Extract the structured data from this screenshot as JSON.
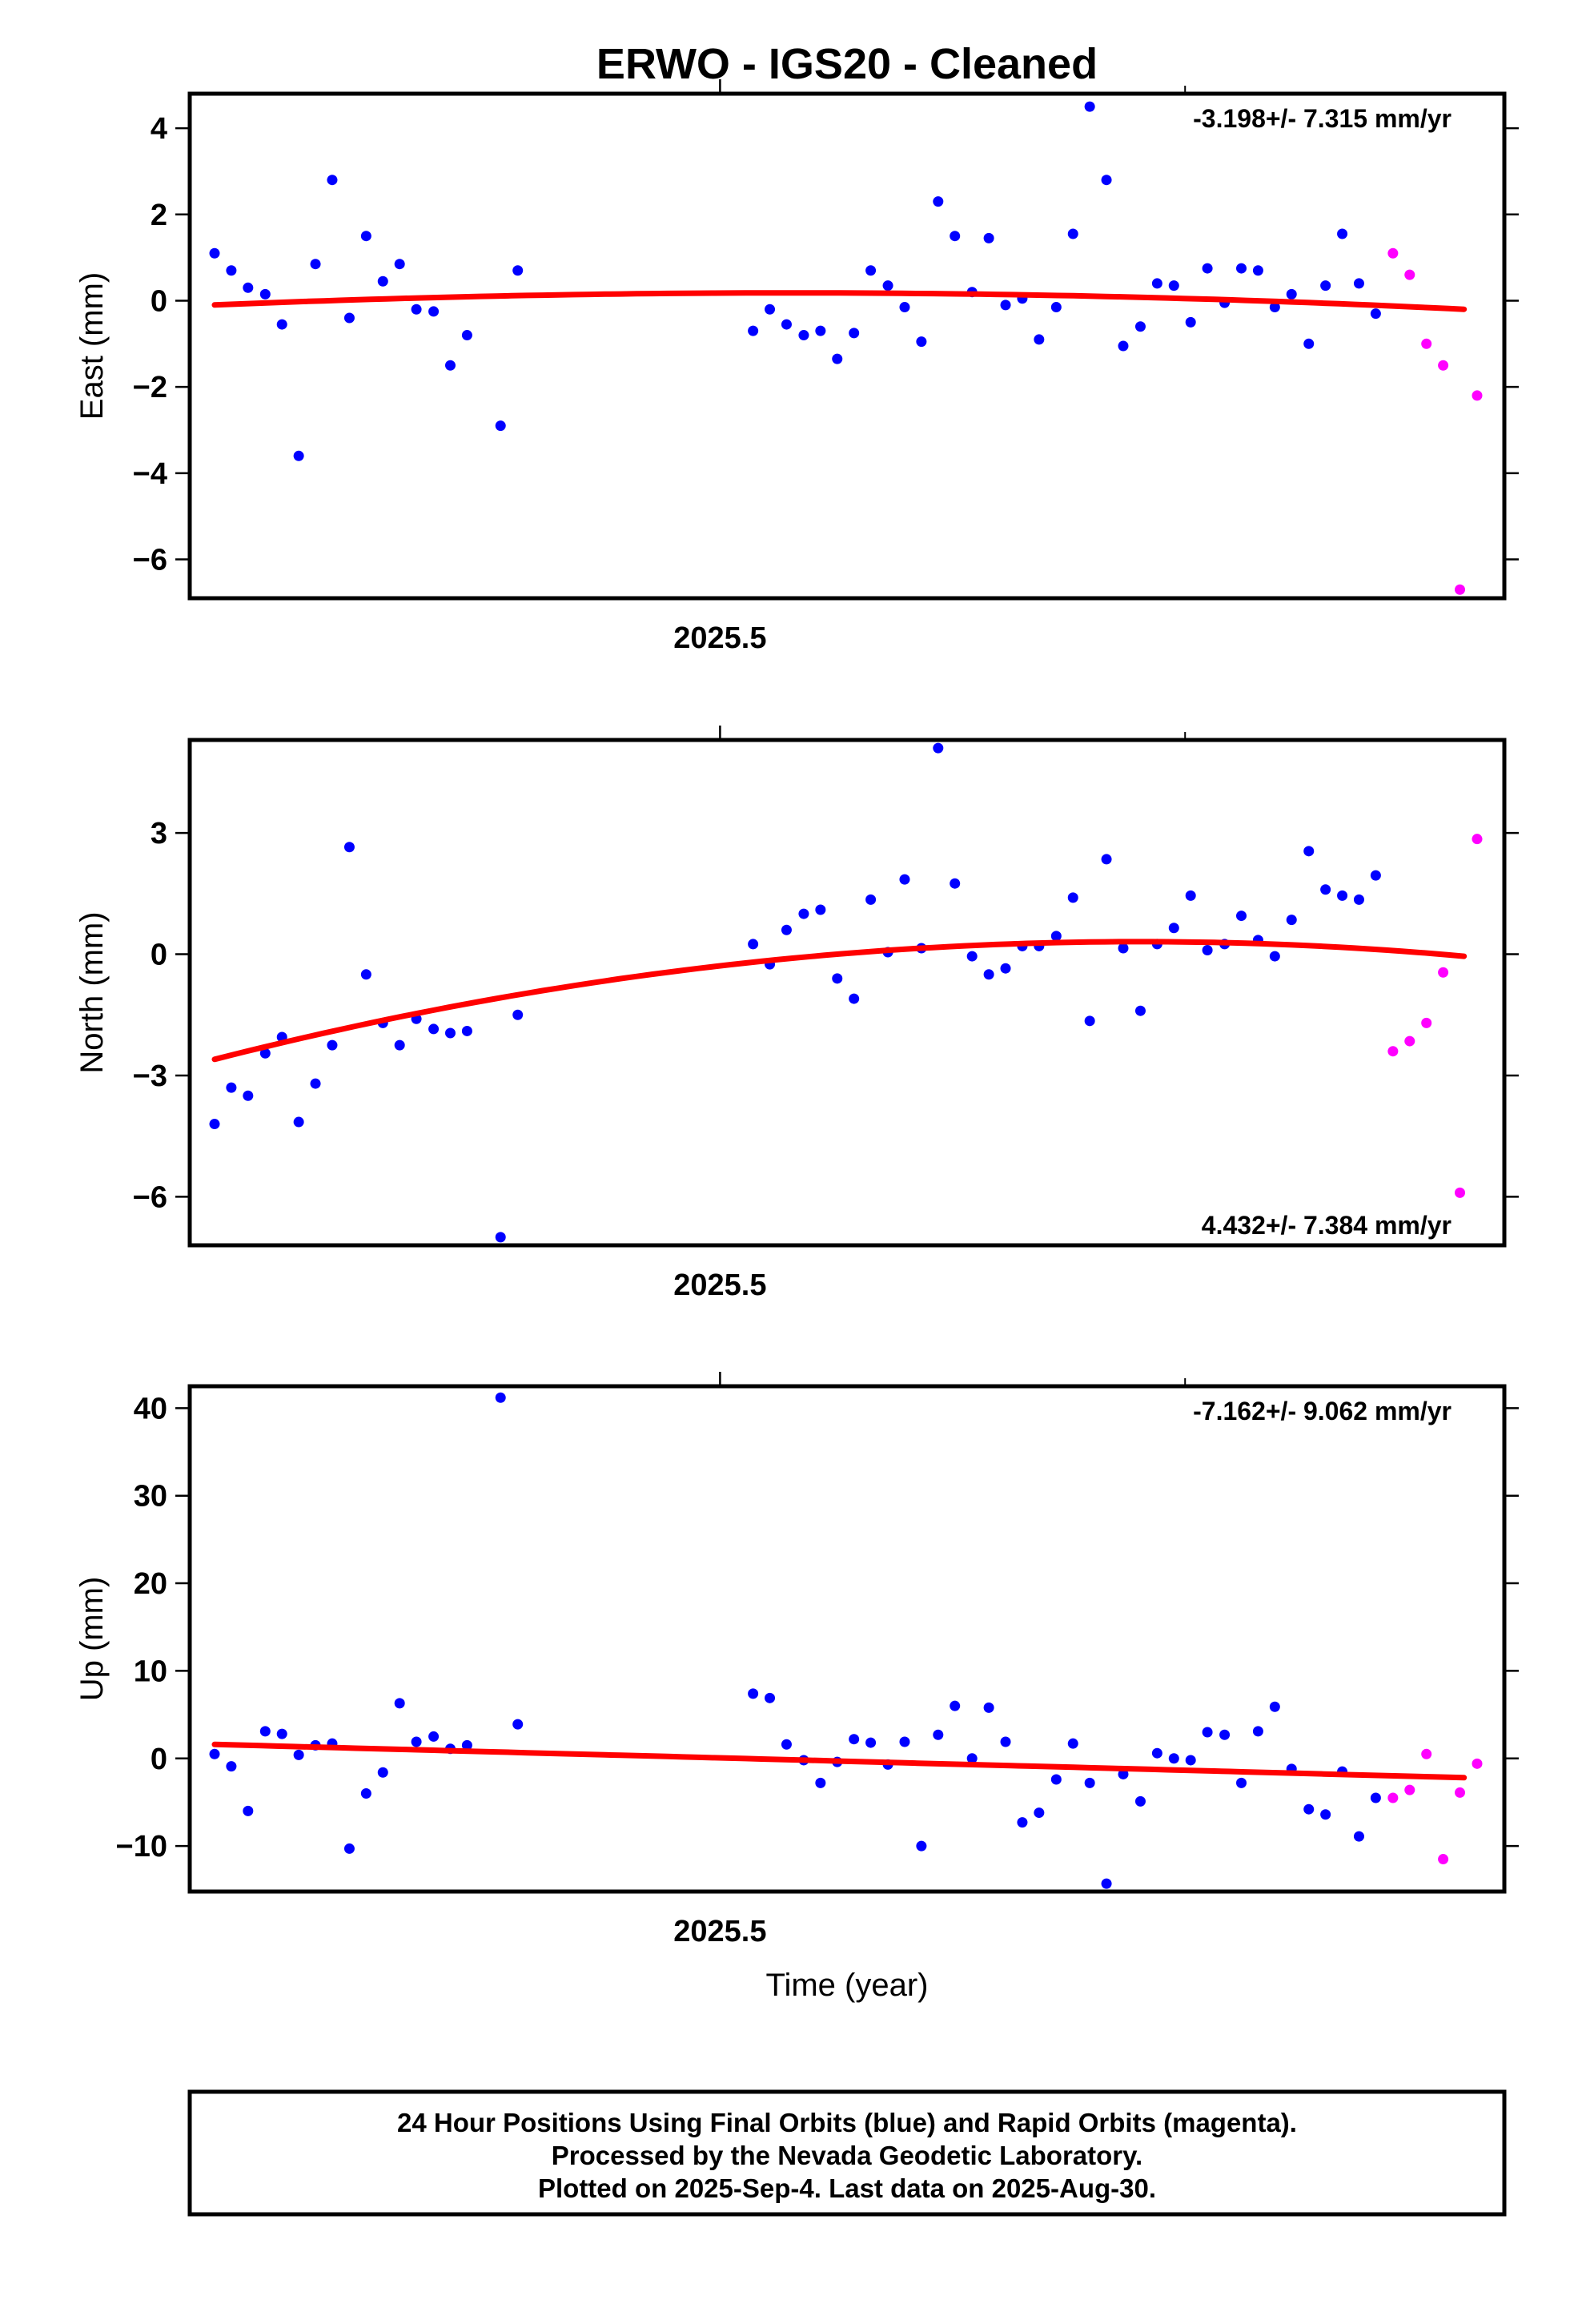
{
  "title": "ERWO  - IGS20 - Cleaned",
  "x_axis_label": "Time (year)",
  "caption": [
    "24 Hour Positions Using Final Orbits (blue) and Rapid Orbits (magenta).",
    "Processed by the Nevada Geodetic Laboratory.",
    "Plotted on 2025-Sep-4. Last data on 2025-Aug-30."
  ],
  "colors": {
    "final": "#0000ff",
    "rapid": "#ff00ff",
    "fit": "#ff0000",
    "frame": "#000000"
  },
  "chart_data": [
    {
      "type": "scatter",
      "ylabel": "East (mm)",
      "rate_label": "-3.198+/- 7.315 mm/yr",
      "rate_position": "top-right",
      "xlim": [
        2025.3853,
        2025.6625
      ],
      "ylim": [
        -6.9,
        4.8
      ],
      "xticks": [
        2025.5
      ],
      "xtick_labels": [
        "2025.5"
      ],
      "yticks": [
        4,
        2,
        0,
        -2,
        -4,
        -6
      ],
      "ytick_labels": [
        "4",
        "2",
        "0",
        "−2",
        "−4",
        "−6"
      ],
      "fit": {
        "x": [
          2025.3913,
          2025.66
        ],
        "y_start": -0.1,
        "y_peak": 0.18,
        "y_end": -0.2,
        "x_peak": 2025.51
      },
      "final": [
        [
          2025.3913,
          1.1
        ],
        [
          2025.3949,
          0.7
        ],
        [
          2025.3985,
          0.3
        ],
        [
          2025.4022,
          0.15
        ],
        [
          2025.4058,
          -0.55
        ],
        [
          2025.4094,
          -3.6
        ],
        [
          2025.413,
          0.85
        ],
        [
          2025.4166,
          2.8
        ],
        [
          2025.4203,
          -0.4
        ],
        [
          2025.4239,
          1.5
        ],
        [
          2025.4275,
          0.45
        ],
        [
          2025.4311,
          0.85
        ],
        [
          2025.4347,
          -0.2
        ],
        [
          2025.4384,
          -0.25
        ],
        [
          2025.442,
          -1.5
        ],
        [
          2025.4456,
          -0.8
        ],
        [
          2025.4528,
          -2.9
        ],
        [
          2025.4565,
          0.7
        ],
        [
          2025.5071,
          -0.7
        ],
        [
          2025.5107,
          -0.2
        ],
        [
          2025.5143,
          -0.55
        ],
        [
          2025.518,
          -0.8
        ],
        [
          2025.5216,
          -0.7
        ],
        [
          2025.5252,
          -1.35
        ],
        [
          2025.5288,
          -0.75
        ],
        [
          2025.5324,
          0.7
        ],
        [
          2025.5361,
          0.35
        ],
        [
          2025.5397,
          -0.15
        ],
        [
          2025.5433,
          -0.95
        ],
        [
          2025.5469,
          2.3
        ],
        [
          2025.5505,
          1.5
        ],
        [
          2025.5542,
          0.2
        ],
        [
          2025.5578,
          1.45
        ],
        [
          2025.5614,
          -0.1
        ],
        [
          2025.565,
          0.05
        ],
        [
          2025.5686,
          -0.9
        ],
        [
          2025.5723,
          -0.15
        ],
        [
          2025.5759,
          1.55
        ],
        [
          2025.5795,
          4.5
        ],
        [
          2025.5831,
          2.8
        ],
        [
          2025.5867,
          -1.05
        ],
        [
          2025.5904,
          -0.6
        ],
        [
          2025.594,
          0.4
        ],
        [
          2025.5976,
          0.35
        ],
        [
          2025.6012,
          -0.5
        ],
        [
          2025.6048,
          0.75
        ],
        [
          2025.6085,
          -0.05
        ],
        [
          2025.6121,
          0.75
        ],
        [
          2025.6157,
          0.7
        ],
        [
          2025.6193,
          -0.15
        ],
        [
          2025.6229,
          0.15
        ],
        [
          2025.6266,
          -1.0
        ],
        [
          2025.6302,
          0.35
        ],
        [
          2025.6338,
          1.55
        ],
        [
          2025.6374,
          0.4
        ],
        [
          2025.641,
          -0.3
        ]
      ],
      "rapid": [
        [
          2025.6447,
          1.1
        ],
        [
          2025.6483,
          0.6
        ],
        [
          2025.6519,
          -1.0
        ],
        [
          2025.6555,
          -1.5
        ],
        [
          2025.6591,
          -6.7
        ],
        [
          2025.6628,
          -2.2
        ]
      ]
    },
    {
      "type": "scatter",
      "ylabel": "North (mm)",
      "rate_label": "4.432+/- 7.384 mm/yr",
      "rate_position": "bottom-right",
      "xlim": [
        2025.3853,
        2025.6625
      ],
      "ylim": [
        -7.2,
        5.3
      ],
      "xticks": [
        2025.5
      ],
      "xtick_labels": [
        "2025.5"
      ],
      "yticks": [
        3,
        0,
        -3,
        -6
      ],
      "ytick_labels": [
        "3",
        "0",
        "−3",
        "−6"
      ],
      "fit": {
        "x": [
          2025.3913,
          2025.66
        ],
        "y_start": -2.6,
        "y_peak": 0.3,
        "y_end": -0.05,
        "x_peak": 2025.602
      },
      "final": [
        [
          2025.3913,
          -4.2
        ],
        [
          2025.3949,
          -3.3
        ],
        [
          2025.3985,
          -3.5
        ],
        [
          2025.4022,
          -2.45
        ],
        [
          2025.4058,
          -2.05
        ],
        [
          2025.4094,
          -4.15
        ],
        [
          2025.413,
          -3.2
        ],
        [
          2025.4166,
          -2.25
        ],
        [
          2025.4203,
          2.65
        ],
        [
          2025.4239,
          -0.5
        ],
        [
          2025.4275,
          -1.7
        ],
        [
          2025.4311,
          -2.25
        ],
        [
          2025.4347,
          -1.6
        ],
        [
          2025.4384,
          -1.85
        ],
        [
          2025.442,
          -1.95
        ],
        [
          2025.4456,
          -1.9
        ],
        [
          2025.4528,
          -7.0
        ],
        [
          2025.4565,
          -1.5
        ],
        [
          2025.5071,
          0.25
        ],
        [
          2025.5107,
          -0.25
        ],
        [
          2025.5143,
          0.6
        ],
        [
          2025.518,
          1.0
        ],
        [
          2025.5216,
          1.1
        ],
        [
          2025.5252,
          -0.6
        ],
        [
          2025.5288,
          -1.1
        ],
        [
          2025.5324,
          1.35
        ],
        [
          2025.5361,
          0.05
        ],
        [
          2025.5397,
          1.85
        ],
        [
          2025.5433,
          0.15
        ],
        [
          2025.5469,
          5.1
        ],
        [
          2025.5505,
          1.75
        ],
        [
          2025.5542,
          -0.05
        ],
        [
          2025.5578,
          -0.5
        ],
        [
          2025.5614,
          -0.35
        ],
        [
          2025.565,
          0.2
        ],
        [
          2025.5686,
          0.2
        ],
        [
          2025.5723,
          0.45
        ],
        [
          2025.5759,
          1.4
        ],
        [
          2025.5795,
          -1.65
        ],
        [
          2025.5831,
          2.35
        ],
        [
          2025.5867,
          0.15
        ],
        [
          2025.5904,
          -1.4
        ],
        [
          2025.594,
          0.25
        ],
        [
          2025.5976,
          0.65
        ],
        [
          2025.6012,
          1.45
        ],
        [
          2025.6048,
          0.1
        ],
        [
          2025.6085,
          0.25
        ],
        [
          2025.6121,
          0.95
        ],
        [
          2025.6157,
          0.35
        ],
        [
          2025.6193,
          -0.05
        ],
        [
          2025.6229,
          0.85
        ],
        [
          2025.6266,
          2.55
        ],
        [
          2025.6302,
          1.6
        ],
        [
          2025.6338,
          1.45
        ],
        [
          2025.6374,
          1.35
        ],
        [
          2025.641,
          1.95
        ]
      ],
      "rapid": [
        [
          2025.6447,
          -2.4
        ],
        [
          2025.6483,
          -2.15
        ],
        [
          2025.6519,
          -1.7
        ],
        [
          2025.6555,
          -0.45
        ],
        [
          2025.6591,
          -5.9
        ],
        [
          2025.6628,
          2.85
        ]
      ]
    },
    {
      "type": "scatter",
      "ylabel": "Up (mm)",
      "rate_label": "-7.162+/- 9.062 mm/yr",
      "rate_position": "top-right",
      "xlim": [
        2025.3853,
        2025.6625
      ],
      "ylim": [
        -15.2,
        42.5
      ],
      "xticks": [
        2025.5
      ],
      "xtick_labels": [
        "2025.5"
      ],
      "yticks": [
        40,
        30,
        20,
        10,
        0,
        -10
      ],
      "ytick_labels": [
        "40",
        "30",
        "20",
        "10",
        "0",
        "−10"
      ],
      "fit": {
        "x": [
          2025.3913,
          2025.66
        ],
        "y_start": 1.6,
        "y_peak": 1.6,
        "y_end": -2.2,
        "x_peak": 2025.3913
      },
      "final": [
        [
          2025.3913,
          0.5
        ],
        [
          2025.3949,
          -0.9
        ],
        [
          2025.3985,
          -6.0
        ],
        [
          2025.4022,
          3.1
        ],
        [
          2025.4058,
          2.8
        ],
        [
          2025.4094,
          0.4
        ],
        [
          2025.413,
          1.5
        ],
        [
          2025.4166,
          1.7
        ],
        [
          2025.4203,
          -10.3
        ],
        [
          2025.4239,
          -4.0
        ],
        [
          2025.4275,
          -1.6
        ],
        [
          2025.4311,
          6.3
        ],
        [
          2025.4347,
          1.9
        ],
        [
          2025.4384,
          2.5
        ],
        [
          2025.442,
          1.1
        ],
        [
          2025.4456,
          1.5
        ],
        [
          2025.4528,
          41.2
        ],
        [
          2025.4565,
          3.9
        ],
        [
          2025.5071,
          7.4
        ],
        [
          2025.5107,
          6.9
        ],
        [
          2025.5143,
          1.6
        ],
        [
          2025.518,
          -0.2
        ],
        [
          2025.5216,
          -2.8
        ],
        [
          2025.5252,
          -0.4
        ],
        [
          2025.5288,
          2.2
        ],
        [
          2025.5324,
          1.8
        ],
        [
          2025.5361,
          -0.7
        ],
        [
          2025.5397,
          1.9
        ],
        [
          2025.5433,
          -10.0
        ],
        [
          2025.5469,
          2.7
        ],
        [
          2025.5505,
          6.0
        ],
        [
          2025.5542,
          0.0
        ],
        [
          2025.5578,
          5.8
        ],
        [
          2025.5614,
          1.9
        ],
        [
          2025.565,
          -7.3
        ],
        [
          2025.5686,
          -6.2
        ],
        [
          2025.5723,
          -2.4
        ],
        [
          2025.5759,
          1.7
        ],
        [
          2025.5795,
          -2.8
        ],
        [
          2025.5831,
          -14.3
        ],
        [
          2025.5867,
          -1.8
        ],
        [
          2025.5904,
          -4.9
        ],
        [
          2025.594,
          0.6
        ],
        [
          2025.5976,
          0.0
        ],
        [
          2025.6012,
          -0.2
        ],
        [
          2025.6048,
          3.0
        ],
        [
          2025.6085,
          2.7
        ],
        [
          2025.6121,
          -2.8
        ],
        [
          2025.6157,
          3.1
        ],
        [
          2025.6193,
          5.9
        ],
        [
          2025.6229,
          -1.2
        ],
        [
          2025.6266,
          -5.8
        ],
        [
          2025.6302,
          -6.4
        ],
        [
          2025.6338,
          -1.5
        ],
        [
          2025.6374,
          -8.9
        ],
        [
          2025.641,
          -4.5
        ]
      ],
      "rapid": [
        [
          2025.6447,
          -4.5
        ],
        [
          2025.6483,
          -3.6
        ],
        [
          2025.6519,
          0.5
        ],
        [
          2025.6555,
          -11.5
        ],
        [
          2025.6591,
          -3.9
        ],
        [
          2025.6628,
          -0.6
        ]
      ]
    }
  ]
}
